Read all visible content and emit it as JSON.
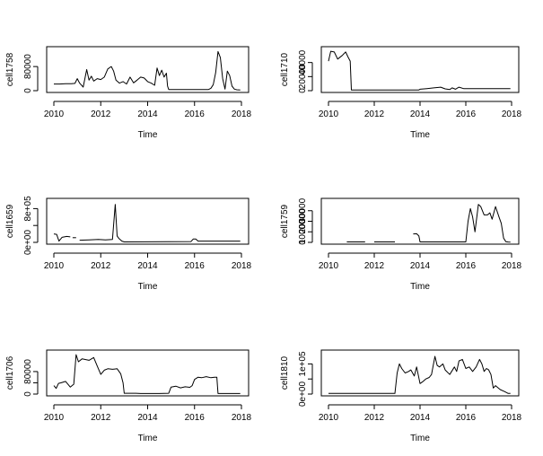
{
  "chart_data": [
    {
      "type": "line",
      "xlabel": "Time",
      "ylabel": "cell1758",
      "xlim": [
        2010,
        2018
      ],
      "ylim": [
        0,
        140000
      ],
      "xticks": [
        2010,
        2012,
        2014,
        2016,
        2018
      ],
      "xtick_labels": [
        "2010",
        "2012",
        "2014",
        "2016",
        "2018"
      ],
      "yticks": [
        0,
        80000
      ],
      "ytick_labels": [
        "0",
        "80000"
      ],
      "series": [
        {
          "x": [
            2010.0,
            2010.25,
            2010.5,
            2010.75,
            2010.9,
            2011.0,
            2011.1,
            2011.25,
            2011.4,
            2011.5,
            2011.6,
            2011.7,
            2011.85,
            2012.0,
            2012.15,
            2012.3,
            2012.45,
            2012.55,
            2012.65,
            2012.8,
            2012.95,
            2013.1,
            2013.25,
            2013.4,
            2013.55,
            2013.7,
            2013.85,
            2014.0,
            2014.15,
            2014.3,
            2014.4,
            2014.5,
            2014.6,
            2014.7,
            2014.8,
            2014.85,
            2014.9,
            2016.0,
            2016.6,
            2016.7,
            2016.8,
            2016.9,
            2017.0,
            2017.1,
            2017.2,
            2017.3,
            2017.4,
            2017.5,
            2017.6,
            2017.7,
            2017.8,
            2017.95
          ],
          "y": [
            22000,
            22000,
            23000,
            23000,
            24000,
            40000,
            25000,
            12000,
            70000,
            35000,
            48000,
            32000,
            40000,
            37000,
            45000,
            72000,
            80000,
            65000,
            35000,
            25000,
            30000,
            22000,
            45000,
            26000,
            35000,
            45000,
            42000,
            30000,
            25000,
            18000,
            75000,
            50000,
            68000,
            45000,
            58000,
            15000,
            4000,
            4000,
            4000,
            8000,
            20000,
            60000,
            130000,
            110000,
            40000,
            5000,
            65000,
            50000,
            15000,
            5000,
            3000,
            2000
          ]
        }
      ]
    },
    {
      "type": "line",
      "xlabel": "Time",
      "ylabel": "cell1710",
      "xlim": [
        2010,
        2018
      ],
      "ylim": [
        0,
        60000
      ],
      "xticks": [
        2010,
        2012,
        2014,
        2016,
        2018
      ],
      "xtick_labels": [
        "2010",
        "2012",
        "2014",
        "2016",
        "2018"
      ],
      "yticks": [
        0,
        20000,
        40000
      ],
      "ytick_labels": [
        "0",
        "20000",
        "40000"
      ],
      "series": [
        {
          "x": [
            2010.0,
            2010.1,
            2010.25,
            2010.4,
            2010.6,
            2010.75,
            2010.85,
            2010.95,
            2011.0,
            2013.95,
            2014.0,
            2014.3,
            2014.6,
            2014.9,
            2015.1,
            2015.3,
            2015.4,
            2015.55,
            2015.7,
            2015.9,
            2016.1,
            2016.5,
            2016.9,
            2017.3,
            2017.7,
            2017.95
          ],
          "y": [
            42000,
            56000,
            55000,
            45000,
            50000,
            55000,
            48000,
            42000,
            1000,
            1000,
            2000,
            3000,
            4000,
            5000,
            2500,
            1500,
            4000,
            2000,
            5000,
            3000,
            3000,
            3000,
            3000,
            3000,
            3000,
            3000
          ]
        }
      ]
    },
    {
      "type": "line",
      "xlabel": "Time",
      "ylabel": "cell1659",
      "xlim": [
        2010,
        2018
      ],
      "ylim": [
        0,
        1000000
      ],
      "xticks": [
        2010,
        2012,
        2014,
        2016,
        2018
      ],
      "xtick_labels": [
        "2010",
        "2012",
        "2014",
        "2016",
        "2018"
      ],
      "yticks": [
        0,
        400000,
        800000
      ],
      "ytick_labels": [
        "0e+00",
        "",
        "8e+05"
      ],
      "series": [
        {
          "segments": [
            {
              "x": [
                2010.0,
                2010.12,
                2010.22,
                2010.35,
                2010.55,
                2010.7
              ],
              "y": [
                200000,
                190000,
                30000,
                120000,
                140000,
                130000
              ]
            },
            {
              "x": [
                2010.8,
                2010.95
              ],
              "y": [
                110000,
                110000
              ]
            },
            {
              "x": [
                2011.1,
                2011.5,
                2011.9,
                2012.2,
                2012.5,
                2012.62,
                2012.7,
                2012.78,
                2012.9,
                2013.0,
                2015.85,
                2015.95,
                2016.05,
                2016.15,
                2017.95
              ],
              "y": [
                50000,
                60000,
                70000,
                60000,
                70000,
                900000,
                150000,
                90000,
                30000,
                10000,
                20000,
                80000,
                80000,
                30000,
                30000
              ]
            }
          ]
        }
      ]
    },
    {
      "type": "line",
      "xlabel": "Time",
      "ylabel": "cell1759",
      "xlim": [
        2010,
        2018
      ],
      "ylim": [
        0,
        40000
      ],
      "xticks": [
        2010,
        2012,
        2014,
        2016,
        2018
      ],
      "xtick_labels": [
        "2010",
        "2012",
        "2014",
        "2016",
        "2018"
      ],
      "yticks": [
        0,
        10000,
        20000,
        30000
      ],
      "ytick_labels": [
        "0",
        "10000",
        "20000",
        "30000"
      ],
      "series": [
        {
          "segments": [
            {
              "x": [
                2010.8,
                2011.6
              ],
              "y": [
                400,
                400
              ]
            },
            {
              "x": [
                2012.0,
                2012.9
              ],
              "y": [
                400,
                400
              ]
            },
            {
              "x": [
                2013.7,
                2013.85,
                2013.95,
                2014.0,
                2016.0,
                2016.1,
                2016.2,
                2016.3,
                2016.4,
                2016.55,
                2016.65,
                2016.8,
                2016.95,
                2017.05,
                2017.15,
                2017.3,
                2017.45,
                2017.55,
                2017.65,
                2017.75,
                2017.85,
                2017.95
              ],
              "y": [
                8000,
                8200,
                6000,
                400,
                400,
                20000,
                32000,
                24000,
                10000,
                36000,
                34000,
                26000,
                26000,
                28000,
                22000,
                34000,
                24000,
                18000,
                4000,
                700,
                300,
                200
              ]
            }
          ]
        }
      ]
    },
    {
      "type": "line",
      "xlabel": "Time",
      "ylabel": "cell1706",
      "xlim": [
        2010,
        2018
      ],
      "ylim": [
        0,
        150000
      ],
      "xticks": [
        2010,
        2012,
        2014,
        2016,
        2018
      ],
      "xtick_labels": [
        "2010",
        "2012",
        "2014",
        "2016",
        "2018"
      ],
      "yticks": [
        0,
        40000,
        80000
      ],
      "ytick_labels": [
        "0",
        "",
        "80000"
      ],
      "series": [
        {
          "x": [
            2010.0,
            2010.1,
            2010.2,
            2010.3,
            2010.5,
            2010.7,
            2010.85,
            2010.95,
            2011.05,
            2011.2,
            2011.5,
            2011.7,
            2011.85,
            2012.0,
            2012.15,
            2012.3,
            2012.5,
            2012.7,
            2012.85,
            2012.95,
            2013.0,
            2013.5,
            2013.7,
            2014.0,
            2014.5,
            2014.9,
            2015.0,
            2015.2,
            2015.4,
            2015.6,
            2015.8,
            2015.9,
            2016.0,
            2016.15,
            2016.3,
            2016.5,
            2016.7,
            2016.85,
            2016.95,
            2017.0,
            2017.95
          ],
          "y": [
            30000,
            20000,
            38000,
            40000,
            45000,
            25000,
            35000,
            140000,
            115000,
            125000,
            120000,
            130000,
            100000,
            70000,
            85000,
            90000,
            88000,
            90000,
            72000,
            40000,
            3000,
            3000,
            2000,
            2000,
            2000,
            3000,
            25000,
            28000,
            22000,
            26000,
            24000,
            30000,
            52000,
            60000,
            58000,
            62000,
            58000,
            60000,
            60000,
            2000,
            2000
          ]
        }
      ]
    },
    {
      "type": "line",
      "xlabel": "Time",
      "ylabel": "cell1810",
      "xlim": [
        2010,
        2018
      ],
      "ylim": [
        0,
        140000
      ],
      "xticks": [
        2010,
        2012,
        2014,
        2016,
        2018
      ],
      "xtick_labels": [
        "2010",
        "2012",
        "2014",
        "2016",
        "2018"
      ],
      "yticks": [
        0,
        50000,
        100000
      ],
      "ytick_labels": [
        "0e+00",
        "",
        "1e+05"
      ],
      "series": [
        {
          "x": [
            2010.0,
            2011.0,
            2012.0,
            2012.5,
            2012.9,
            2013.0,
            2013.1,
            2013.2,
            2013.35,
            2013.5,
            2013.6,
            2013.75,
            2013.85,
            2014.0,
            2014.1,
            2014.25,
            2014.4,
            2014.5,
            2014.65,
            2014.75,
            2014.85,
            2015.0,
            2015.1,
            2015.3,
            2015.5,
            2015.6,
            2015.7,
            2015.85,
            2016.0,
            2016.15,
            2016.3,
            2016.45,
            2016.6,
            2016.7,
            2016.8,
            2016.9,
            2017.0,
            2017.1,
            2017.2,
            2017.3,
            2017.5,
            2017.7,
            2017.85,
            2017.95
          ],
          "y": [
            2000,
            2000,
            2000,
            2000,
            2000,
            70000,
            100000,
            85000,
            70000,
            75000,
            80000,
            60000,
            90000,
            35000,
            40000,
            50000,
            55000,
            65000,
            125000,
            95000,
            90000,
            100000,
            80000,
            65000,
            90000,
            75000,
            110000,
            115000,
            85000,
            90000,
            75000,
            90000,
            115000,
            100000,
            75000,
            85000,
            80000,
            65000,
            20000,
            28000,
            15000,
            8000,
            2000,
            2000
          ]
        }
      ]
    }
  ]
}
